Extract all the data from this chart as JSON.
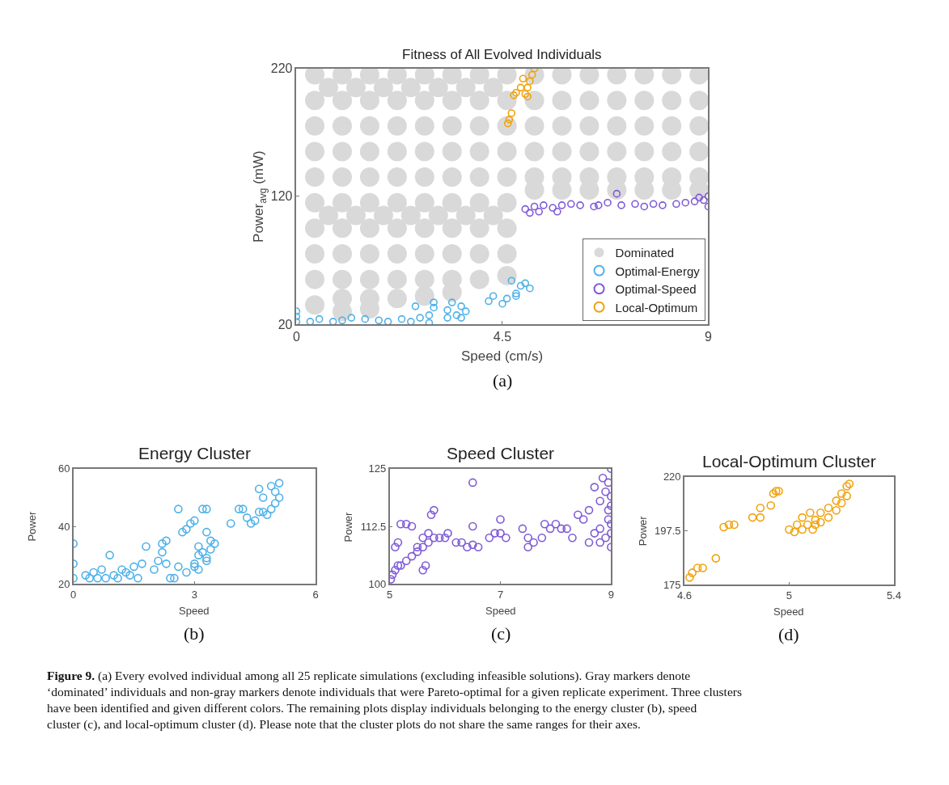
{
  "chart_data": [
    {
      "type": "scatter",
      "title": "Fitness of All Evolved Individuals",
      "xlabel": "Speed (cm/s)",
      "ylabel": "Power$_{avg}$ (mW)",
      "xlim": [
        0,
        9
      ],
      "ylim": [
        20,
        220
      ],
      "xticks": [
        0,
        4.5,
        9
      ],
      "yticks": [
        20,
        120,
        220
      ],
      "grid": false,
      "marker": "circle",
      "legend": "bottom right",
      "annotations": [
        "(a)"
      ],
      "series": [
        {
          "name": "Dominated",
          "color": "#d9d9d9",
          "x": [
            0.4,
            0.4,
            0.4,
            0.4,
            0.4,
            0.4,
            0.4,
            0.4,
            0.4,
            0.4,
            1.0,
            1.0,
            1.0,
            1.0,
            1.0,
            1.0,
            1.0,
            1.0,
            1.0,
            1.0,
            1.0,
            1.6,
            1.6,
            1.6,
            1.6,
            1.6,
            1.6,
            1.6,
            1.6,
            1.6,
            1.6,
            1.6,
            2.2,
            2.2,
            2.2,
            2.2,
            2.2,
            2.2,
            2.2,
            2.2,
            2.2,
            2.2,
            2.8,
            2.8,
            2.8,
            2.8,
            2.8,
            2.8,
            2.8,
            2.8,
            2.8,
            2.8,
            3.4,
            3.4,
            3.4,
            3.4,
            3.4,
            3.4,
            3.4,
            3.4,
            3.4,
            3.4,
            4.0,
            4.0,
            4.0,
            4.0,
            4.0,
            4.0,
            4.0,
            4.0,
            4.0,
            4.6,
            4.6,
            4.6,
            4.6,
            4.6,
            4.6,
            4.6,
            4.6,
            4.6,
            5.2,
            5.2,
            5.2,
            5.2,
            5.2,
            5.2,
            5.8,
            5.8,
            5.8,
            5.8,
            5.8,
            5.8,
            6.4,
            6.4,
            6.4,
            6.4,
            6.4,
            6.4,
            7.0,
            7.0,
            7.0,
            7.0,
            7.0,
            7.0,
            7.6,
            7.6,
            7.6,
            7.6,
            7.6,
            7.6,
            8.2,
            8.2,
            8.2,
            8.2,
            8.2,
            8.2,
            8.8,
            8.8,
            8.8,
            8.8,
            8.8,
            8.8,
            0.7,
            1.3,
            1.9,
            2.5,
            3.1,
            3.7,
            4.3,
            0.7,
            1.3,
            1.9,
            2.5,
            3.1,
            3.7,
            4.3
          ],
          "values": [
            215,
            195,
            175,
            155,
            135,
            115,
            95,
            75,
            55,
            35,
            215,
            195,
            175,
            155,
            135,
            115,
            95,
            75,
            55,
            40,
            30,
            215,
            195,
            175,
            155,
            135,
            115,
            95,
            75,
            55,
            40,
            32,
            215,
            195,
            175,
            155,
            135,
            115,
            95,
            75,
            55,
            40,
            215,
            195,
            175,
            155,
            135,
            115,
            95,
            75,
            55,
            42,
            215,
            195,
            175,
            155,
            135,
            115,
            95,
            75,
            55,
            45,
            215,
            195,
            175,
            155,
            135,
            115,
            95,
            75,
            55,
            215,
            195,
            175,
            155,
            135,
            115,
            95,
            75,
            58,
            215,
            195,
            175,
            155,
            135,
            125,
            215,
            195,
            175,
            155,
            135,
            125,
            215,
            195,
            175,
            155,
            135,
            125,
            215,
            195,
            175,
            155,
            135,
            125,
            215,
            195,
            175,
            155,
            135,
            125,
            215,
            195,
            175,
            155,
            135,
            125,
            215,
            195,
            175,
            155,
            135,
            125,
            205,
            205,
            205,
            205,
            205,
            205,
            205,
            105,
            105,
            105,
            105,
            105,
            105,
            105
          ]
        },
        {
          "name": "Optimal-Energy",
          "color": "#4fb1e8",
          "x": [
            0,
            0,
            0,
            0.3,
            0.5,
            0.8,
            1,
            1.2,
            1.5,
            1.8,
            2,
            2.3,
            2.5,
            2.7,
            2.6,
            2.9,
            2.9,
            3.0,
            3.0,
            3.3,
            3.5,
            3.7,
            3.6,
            3.4,
            3.6,
            3.3,
            4.2,
            4.3,
            4.5,
            4.6,
            4.8,
            4.9,
            5.0,
            5.1,
            4.8,
            4.7
          ],
          "values": [
            22,
            26,
            30,
            22,
            24,
            22,
            23,
            25,
            24,
            23,
            22,
            24,
            22,
            25,
            34,
            27,
            21,
            33,
            37,
            31,
            27,
            30,
            34,
            37,
            25,
            25,
            38,
            42,
            36,
            40,
            44,
            50,
            52,
            48,
            42,
            54
          ]
        },
        {
          "name": "Optimal-Speed",
          "color": "#7f5ad6",
          "x": [
            5,
            5.1,
            5.2,
            5.3,
            5.4,
            5.6,
            5.7,
            5.8,
            6,
            6.2,
            6.5,
            6.6,
            6.8,
            7,
            7.1,
            7.4,
            7.6,
            7.8,
            8,
            8.3,
            8.5,
            8.7,
            8.8,
            8.9,
            9,
            9
          ],
          "values": [
            110,
            107,
            112,
            108,
            113,
            111,
            108,
            113,
            114,
            113,
            112,
            113,
            115,
            122,
            113,
            114,
            112,
            114,
            113,
            114,
            115,
            116,
            119,
            117,
            120,
            112
          ]
        },
        {
          "name": "Local-Optimum",
          "color": "#f0a20c",
          "x": [
            4.62,
            4.65,
            4.7,
            4.75,
            4.8,
            4.9,
            4.95,
            5.0,
            5.05,
            5.05,
            5.1,
            5.15,
            5.2
          ],
          "values": [
            177,
            180,
            185,
            199,
            201,
            205,
            212,
            200,
            205,
            198,
            210,
            215,
            220
          ]
        }
      ]
    },
    {
      "type": "scatter",
      "title": "Energy Cluster",
      "xlabel": "Speed",
      "ylabel": "Power",
      "xlim": [
        0,
        6
      ],
      "ylim": [
        20,
        60
      ],
      "xticks": [
        0,
        3,
        6
      ],
      "yticks": [
        20,
        40,
        60
      ],
      "grid": false,
      "marker": "circle",
      "annotations": [
        "(b)"
      ],
      "series": [
        {
          "color": "#4fb1e8",
          "x": [
            0,
            0,
            0,
            0.3,
            0.4,
            0.5,
            0.6,
            0.7,
            0.8,
            0.9,
            1,
            1.1,
            1.2,
            1.3,
            1.4,
            1.5,
            1.6,
            1.7,
            1.8,
            2,
            2.1,
            2.2,
            2.3,
            2.4,
            2.5,
            2.6,
            2.8,
            3,
            3.1,
            3.2,
            3.1,
            2.2,
            2.3,
            2.6,
            3.2,
            3.3,
            2.7,
            2.8,
            2.9,
            3,
            3.3,
            3.4,
            3.3,
            3.4,
            3.5,
            3.0,
            3.1,
            3.3,
            3.9,
            4.1,
            4.2,
            4.3,
            4.4,
            4.5,
            4.6,
            4.7,
            4.7,
            4.8,
            4.9,
            4.9,
            5,
            5,
            5.1,
            5.1,
            4.6
          ],
          "values": [
            22,
            27,
            34,
            23,
            22,
            24,
            22,
            25,
            22,
            30,
            23,
            22,
            25,
            24,
            23,
            26,
            22,
            27,
            33,
            25,
            28,
            31,
            27,
            22,
            22,
            26,
            24,
            27,
            30,
            31,
            33,
            34,
            35,
            46,
            46,
            46,
            38,
            39,
            41,
            42,
            38,
            35,
            28,
            32,
            34,
            26,
            25,
            29,
            41,
            46,
            46,
            43,
            41,
            42,
            45,
            50,
            45,
            44,
            46,
            54,
            48,
            52,
            55,
            50,
            53
          ]
        }
      ]
    },
    {
      "type": "scatter",
      "title": "Speed Cluster",
      "xlabel": "Speed",
      "ylabel": "Power",
      "xlim": [
        5,
        9
      ],
      "ylim": [
        100,
        125
      ],
      "xticks": [
        5,
        7,
        9
      ],
      "yticks": [
        100,
        112.5,
        125
      ],
      "grid": false,
      "marker": "circle",
      "annotations": [
        "(c)"
      ],
      "series": [
        {
          "color": "#7f5ad6",
          "x": [
            5.02,
            5.05,
            5.1,
            5.15,
            5.2,
            5.3,
            5.4,
            5.5,
            5.6,
            5.7,
            5.8,
            5.9,
            6,
            5.1,
            5.15,
            5.2,
            5.3,
            5.4,
            5.5,
            5.6,
            5.7,
            5.75,
            5.8,
            5.6,
            5.65,
            6.05,
            6.2,
            6.3,
            6.4,
            6.5,
            6.5,
            6.6,
            6.5,
            6.8,
            6.9,
            7,
            7,
            7.1,
            7.4,
            7.5,
            7.5,
            7.6,
            7.75,
            7.8,
            7.9,
            8,
            8.1,
            8.2,
            8.3,
            8.4,
            8.5,
            8.6,
            8.7,
            8.8,
            8.9,
            9,
            8.95,
            9,
            9,
            9,
            8.9,
            9,
            8.7,
            8.85,
            8.8,
            8.95,
            8.6,
            8.8,
            9,
            8.95
          ],
          "values": [
            101,
            102,
            103,
            104,
            104,
            105,
            106,
            107,
            108,
            109,
            110,
            110,
            110,
            108,
            109,
            113,
            113,
            112.5,
            108,
            110,
            111,
            115,
            116,
            103,
            104,
            111,
            109,
            109,
            108,
            112.5,
            108.5,
            108,
            122,
            110,
            111,
            114,
            111,
            110,
            112,
            110,
            108,
            109,
            110,
            113,
            112,
            113,
            112,
            112,
            110,
            115,
            114,
            116,
            111,
            118,
            120,
            125,
            122,
            119,
            117,
            113,
            110,
            108,
            121,
            123,
            112,
            116,
            109,
            109,
            111,
            114
          ]
        }
      ]
    },
    {
      "type": "scatter",
      "title": "Local-Optimum Cluster",
      "xlabel": "Speed",
      "ylabel": "Power",
      "xlim": [
        4.6,
        5.4
      ],
      "ylim": [
        175,
        220
      ],
      "xticks": [
        4.6,
        5,
        5.4
      ],
      "yticks": [
        175,
        197.5,
        220
      ],
      "grid": false,
      "marker": "circle",
      "annotations": [
        "(d)",
        "Figure 9.",
        "(a) Every evolved individual among all 25 replicate simulations (excluding infeasible solutions). Gray markers denote ‘dominated’ individuals and non-gray markers denote individuals that were Pareto-optimal for a given replicate experiment. Three clusters have been identified and given different colors. The remaining plots display individuals belonging to the energy cluster (b), speed cluster (c), and local-optimum cluster (d). Please note that the cluster plots do not share the same ranges for their axes."
      ],
      "series": [
        {
          "color": "#f0a20c",
          "x": [
            4.62,
            4.63,
            4.65,
            4.67,
            4.72,
            4.75,
            4.77,
            4.79,
            4.86,
            4.89,
            4.89,
            4.93,
            4.94,
            4.95,
            4.96,
            5.0,
            5.02,
            5.05,
            5.07,
            5.1,
            5.12,
            5.15,
            5.18,
            5.2,
            5.22,
            5.23,
            5.2,
            5.15,
            5.1,
            5.05,
            5.08,
            5.12,
            5.18,
            5.22,
            5.03,
            5.09
          ],
          "values": [
            178,
            180,
            182,
            182,
            186,
            199,
            200,
            200,
            203,
            203,
            207,
            208,
            213,
            214,
            214,
            198,
            197,
            198,
            200,
            202,
            205,
            207,
            210,
            213,
            216,
            217,
            209,
            203,
            200,
            203,
            205,
            201,
            206,
            212,
            200,
            198
          ]
        }
      ]
    }
  ]
}
